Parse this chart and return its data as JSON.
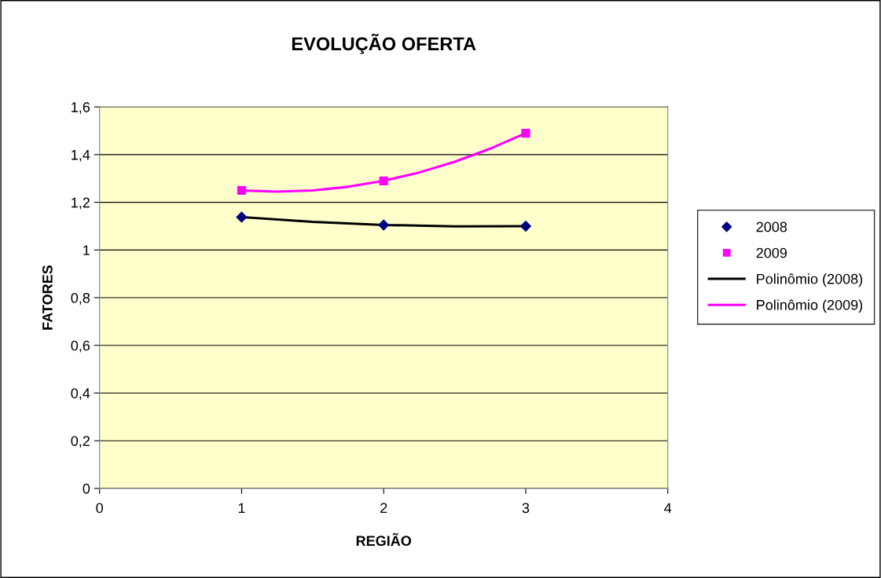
{
  "chart_data": {
    "type": "scatter",
    "title": "EVOLUÇÃO OFERTA",
    "xlabel": "REGIÃO",
    "ylabel": "FATORES",
    "xlim": [
      0,
      4
    ],
    "xticks": [
      0,
      1,
      2,
      3,
      4
    ],
    "ylim": [
      0,
      1.6
    ],
    "yticks": [
      0,
      {
        "value": 0.2,
        "label": "0,2"
      },
      {
        "value": 0.4,
        "label": "0,4"
      },
      {
        "value": 0.6,
        "label": "0,6"
      },
      {
        "value": 0.8,
        "label": "0,8"
      },
      1,
      {
        "value": 1.2,
        "label": "1,2"
      },
      {
        "value": 1.4,
        "label": "1,4"
      },
      {
        "value": 1.6,
        "label": "1,6"
      }
    ],
    "grid": "y",
    "legend": "right",
    "series": [
      {
        "name": "2008",
        "marker": "diamond",
        "color": "#000080",
        "x": [
          1,
          2,
          3
        ],
        "values": [
          1.138,
          1.105,
          1.1
        ]
      },
      {
        "name": "2009",
        "marker": "square",
        "color": "#ff00ff",
        "x": [
          1,
          2,
          3
        ],
        "values": [
          1.25,
          1.29,
          1.49
        ]
      },
      {
        "name": "Polinômio (2008)",
        "type": "line",
        "color": "#000000",
        "x": [
          1,
          1.5,
          2,
          2.5,
          3
        ],
        "values": [
          1.138,
          1.118,
          1.105,
          1.099,
          1.1
        ]
      },
      {
        "name": "Polinômio (2009)",
        "type": "line",
        "color": "#ff00ff",
        "x": [
          1,
          1.25,
          1.5,
          1.75,
          2,
          2.25,
          2.5,
          2.75,
          3
        ],
        "values": [
          1.25,
          1.245,
          1.25,
          1.265,
          1.29,
          1.325,
          1.37,
          1.425,
          1.49
        ]
      }
    ]
  }
}
